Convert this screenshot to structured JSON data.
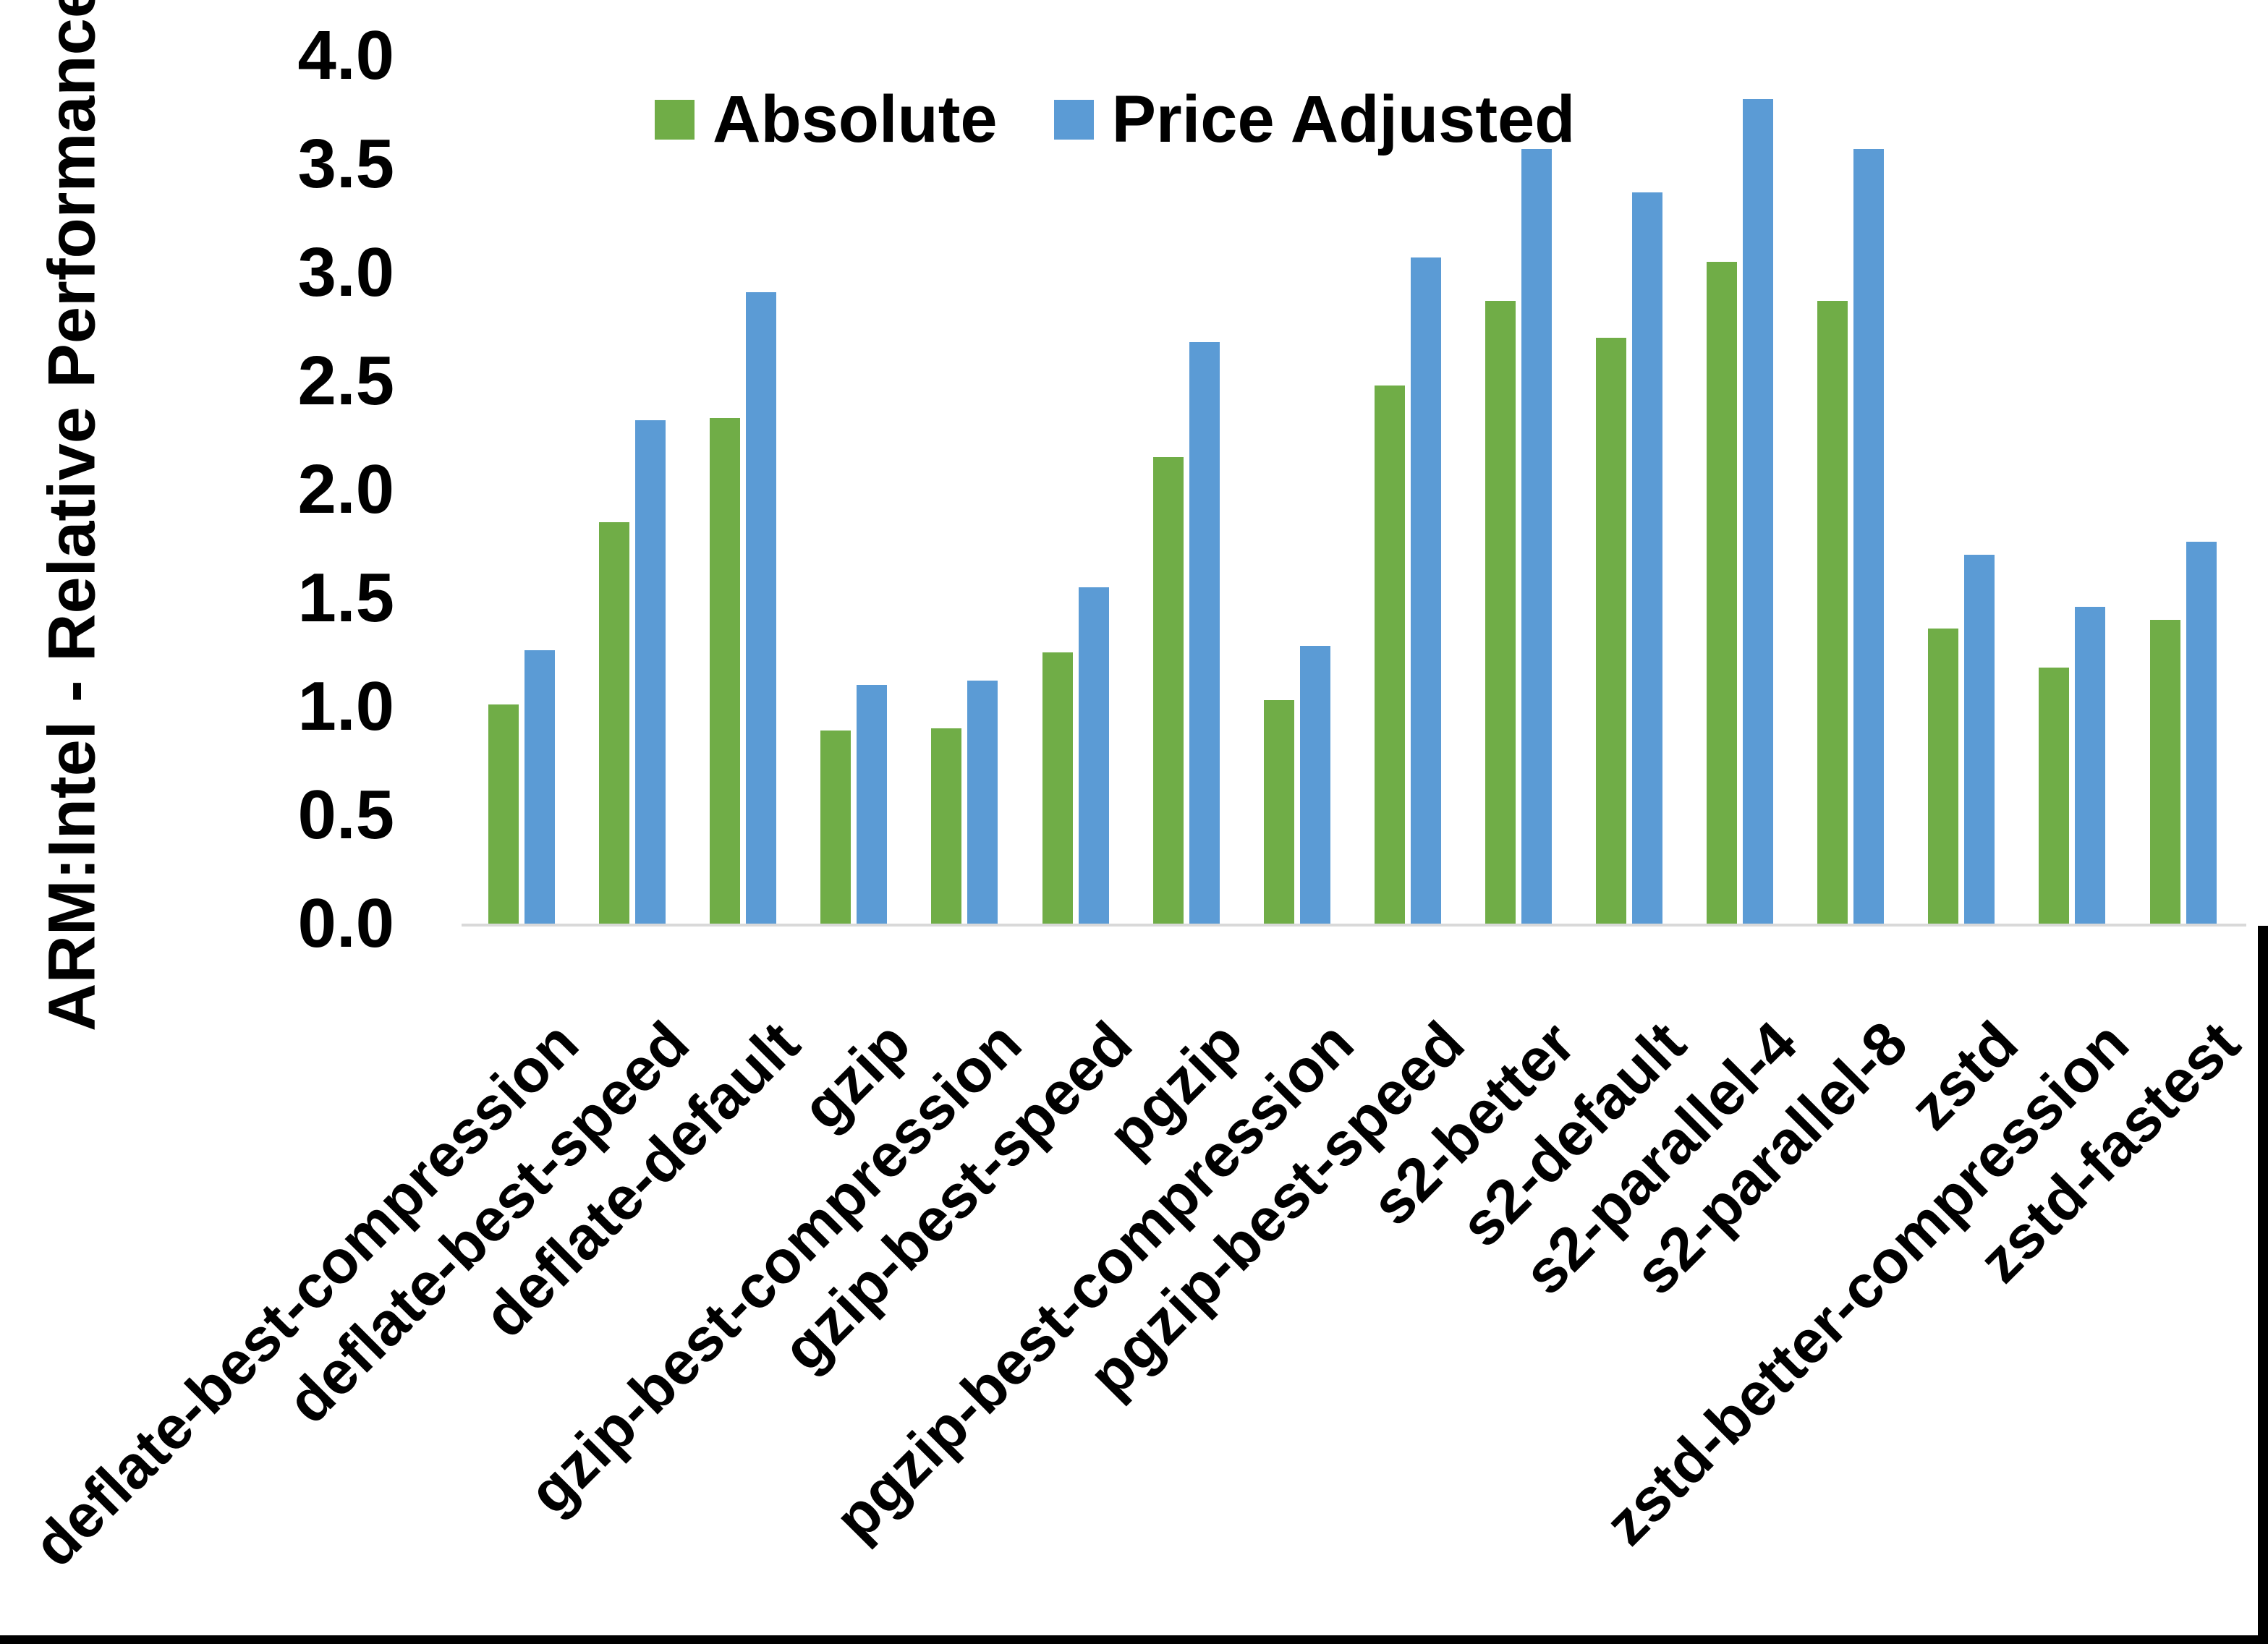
{
  "chart_data": {
    "type": "bar",
    "title": "",
    "xlabel": "",
    "ylabel": "ARM:Intel - Relative Performance",
    "ylim": [
      0,
      4
    ],
    "ytick_step": 0.5,
    "ytick_labels": [
      "4.0",
      "3.5",
      "3.0",
      "2.5",
      "2.0",
      "1.5",
      "1.0",
      "0.5",
      "0.0"
    ],
    "grid": false,
    "legend_position": "top-center",
    "categories": [
      "deflate-best-compression",
      "deflate-best-speed",
      "deflate-default",
      "gzip",
      "gzip-best-compression",
      "gzip-best-speed",
      "pgzip",
      "pgzip-best-compression",
      "pgzip-best-speed",
      "s2-better",
      "s2-default",
      "s2-parallel-4",
      "s2-parallel-8",
      "zstd",
      "zstd-better-compression",
      "zstd-fastest"
    ],
    "series": [
      {
        "name": "Absolute",
        "color": "#70AD47",
        "values": [
          1.01,
          1.85,
          2.33,
          0.89,
          0.9,
          1.25,
          2.15,
          1.03,
          2.48,
          2.87,
          2.7,
          3.05,
          2.87,
          1.36,
          1.18,
          1.4
        ]
      },
      {
        "name": "Price Adjusted",
        "color": "#5B9BD5",
        "values": [
          1.26,
          2.32,
          2.91,
          1.1,
          1.12,
          1.55,
          2.68,
          1.28,
          3.07,
          3.57,
          3.37,
          3.8,
          3.57,
          1.7,
          1.46,
          1.76
        ]
      }
    ]
  },
  "colors": {
    "background": "#FFFFFF",
    "axis_line": "#D9D9D9",
    "text": "#000000",
    "border": "#000000"
  }
}
